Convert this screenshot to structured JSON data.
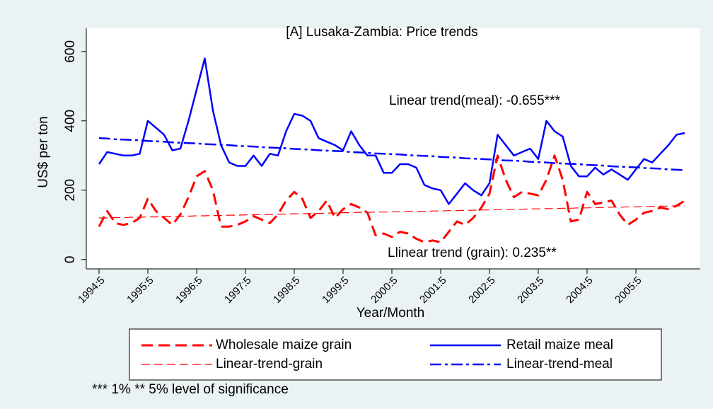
{
  "chart_data": {
    "type": "line",
    "title": "[A] Lusaka-Zambia: Price trends",
    "x_label": "Year/Month",
    "y_label": "US$ per ton",
    "annotations": [
      "Linear trend(meal): -0.655***",
      "Llinear trend (grain): 0.235**"
    ],
    "note": "*** 1%  ** 5% level of significance",
    "categories": [
      "1994:5",
      null,
      null,
      null,
      null,
      null,
      "1995:5",
      null,
      null,
      null,
      null,
      null,
      "1996:5",
      null,
      null,
      null,
      null,
      null,
      "1997:5",
      null,
      null,
      null,
      null,
      null,
      "1998:5",
      null,
      null,
      null,
      null,
      null,
      "1999:5",
      null,
      null,
      null,
      null,
      null,
      "2000:5",
      null,
      null,
      null,
      null,
      null,
      "2001:5",
      null,
      null,
      null,
      null,
      null,
      "2002:5",
      null,
      null,
      null,
      null,
      null,
      "2003:5",
      null,
      null,
      null,
      null,
      null,
      "2004:5",
      null,
      null,
      null,
      null,
      null,
      "2005:5",
      null,
      null,
      null,
      null,
      null,
      null
    ],
    "ylim": [
      -27,
      667
    ],
    "yticks": [
      0,
      200,
      400,
      600
    ],
    "legend": "bottom",
    "series": [
      {
        "name": "Wholesale maize grain",
        "color": "#ff0000",
        "style": "dash",
        "values": [
          95,
          140,
          105,
          100,
          105,
          120,
          175,
          140,
          120,
          100,
          130,
          180,
          240,
          255,
          200,
          95,
          95,
          100,
          110,
          125,
          115,
          105,
          130,
          170,
          195,
          175,
          120,
          140,
          170,
          120,
          145,
          160,
          150,
          135,
          70,
          75,
          65,
          80,
          75,
          60,
          50,
          55,
          50,
          80,
          110,
          100,
          120,
          150,
          190,
          300,
          230,
          180,
          195,
          190,
          185,
          230,
          300,
          230,
          110,
          115,
          195,
          160,
          165,
          170,
          130,
          100,
          115,
          135,
          140,
          150,
          145,
          155,
          170
        ]
      },
      {
        "name": "Retail maize meal",
        "color": "#0000ff",
        "style": "solid",
        "values": [
          275,
          310,
          305,
          300,
          300,
          305,
          400,
          380,
          360,
          315,
          320,
          400,
          490,
          580,
          430,
          330,
          280,
          270,
          270,
          300,
          270,
          305,
          300,
          370,
          420,
          415,
          400,
          350,
          340,
          330,
          315,
          370,
          330,
          300,
          300,
          250,
          250,
          275,
          275,
          265,
          215,
          205,
          200,
          160,
          190,
          220,
          200,
          185,
          220,
          360,
          330,
          300,
          310,
          320,
          290,
          400,
          370,
          355,
          270,
          240,
          240,
          265,
          245,
          260,
          245,
          230,
          260,
          290,
          280,
          305,
          330,
          360,
          365
        ]
      },
      {
        "name": "Linear-trend-grain",
        "color": "#ff0000",
        "style": "thin-dash",
        "values": [
          120,
          120,
          121,
          121,
          122,
          122,
          123,
          123,
          124,
          124,
          125,
          125,
          126,
          126,
          127,
          127,
          128,
          128,
          129,
          129,
          130,
          130,
          131,
          131,
          132,
          132,
          133,
          133,
          134,
          134,
          135,
          135,
          136,
          136,
          137,
          137,
          138,
          138,
          139,
          139,
          139,
          140,
          140,
          141,
          141,
          142,
          142,
          143,
          143,
          144,
          144,
          145,
          145,
          146,
          146,
          147,
          147,
          148,
          148,
          149,
          149,
          150,
          150,
          151,
          151,
          152,
          152,
          153,
          153,
          154,
          154,
          155,
          155
        ]
      },
      {
        "name": "Linear-trend-meal",
        "color": "#0000ff",
        "style": "dash-dot",
        "values": [
          350,
          349,
          347,
          346,
          345,
          344,
          342,
          341,
          340,
          338,
          337,
          336,
          335,
          333,
          332,
          331,
          330,
          328,
          327,
          326,
          324,
          323,
          322,
          321,
          319,
          318,
          317,
          315,
          314,
          313,
          312,
          310,
          309,
          308,
          306,
          305,
          304,
          303,
          301,
          300,
          299,
          298,
          296,
          295,
          294,
          292,
          291,
          290,
          289,
          287,
          286,
          285,
          284,
          282,
          281,
          280,
          278,
          277,
          276,
          275,
          273,
          272,
          271,
          269,
          268,
          267,
          266,
          264,
          263,
          262,
          260,
          259,
          258
        ]
      }
    ]
  }
}
